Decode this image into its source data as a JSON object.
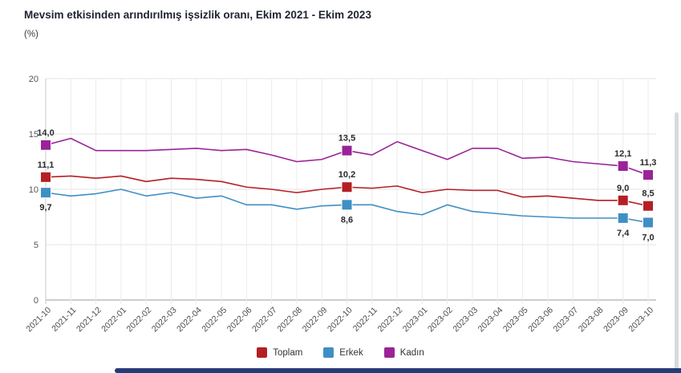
{
  "chart_data": {
    "type": "line",
    "title": "Mevsim etkisinden arındırılmış işsizlik oranı, Ekim 2021 - Ekim 2023",
    "unit": "(%)",
    "categories": [
      "2021-10",
      "2021-11",
      "2021-12",
      "2022-01",
      "2022-02",
      "2022-03",
      "2022-04",
      "2022-05",
      "2022-06",
      "2022-07",
      "2022-08",
      "2022-09",
      "2022-10",
      "2022-11",
      "2022-12",
      "2023-01",
      "2023-02",
      "2023-03",
      "2023-04",
      "2023-05",
      "2023-06",
      "2023-07",
      "2023-08",
      "2023-09",
      "2023-10"
    ],
    "series": [
      {
        "name": "Toplam",
        "color": "#b41f24",
        "values": [
          11.1,
          11.2,
          11.0,
          11.2,
          10.7,
          11.0,
          10.9,
          10.7,
          10.2,
          10.0,
          9.7,
          10.0,
          10.2,
          10.1,
          10.3,
          9.7,
          10.0,
          9.9,
          9.9,
          9.3,
          9.4,
          9.2,
          9.0,
          9.0,
          8.5
        ],
        "labeled_points": [
          {
            "category": "2021-10",
            "label": "11,1",
            "position": "above"
          },
          {
            "category": "2022-10",
            "label": "10,2",
            "position": "above"
          },
          {
            "category": "2023-09",
            "label": "9,0",
            "position": "above"
          },
          {
            "category": "2023-10",
            "label": "8,5",
            "position": "above"
          }
        ]
      },
      {
        "name": "Erkek",
        "color": "#3f8fc5",
        "values": [
          9.7,
          9.4,
          9.6,
          10.0,
          9.4,
          9.7,
          9.2,
          9.4,
          8.6,
          8.6,
          8.2,
          8.5,
          8.6,
          8.6,
          8.0,
          7.7,
          8.6,
          8.0,
          7.8,
          7.6,
          7.5,
          7.4,
          7.4,
          7.4,
          7.0
        ],
        "labeled_points": [
          {
            "category": "2021-10",
            "label": "9,7",
            "position": "below"
          },
          {
            "category": "2022-10",
            "label": "8,6",
            "position": "below"
          },
          {
            "category": "2023-09",
            "label": "7,4",
            "position": "below"
          },
          {
            "category": "2023-10",
            "label": "7,0",
            "position": "below"
          }
        ]
      },
      {
        "name": "Kadın",
        "color": "#9a2398",
        "values": [
          14.0,
          14.6,
          13.5,
          13.5,
          13.5,
          13.6,
          13.7,
          13.5,
          13.6,
          13.1,
          12.5,
          12.7,
          13.5,
          13.1,
          14.3,
          13.5,
          12.7,
          13.7,
          13.7,
          12.8,
          12.9,
          12.5,
          12.3,
          12.1,
          11.3
        ],
        "labeled_points": [
          {
            "category": "2021-10",
            "label": "14,0",
            "position": "above"
          },
          {
            "category": "2022-10",
            "label": "13,5",
            "position": "above"
          },
          {
            "category": "2023-09",
            "label": "12,1",
            "position": "above"
          },
          {
            "category": "2023-10",
            "label": "11,3",
            "position": "above"
          }
        ]
      }
    ],
    "y_axis": {
      "min": 0,
      "max": 20,
      "ticks": [
        0,
        5,
        10,
        15,
        20
      ]
    },
    "x_axis": {
      "label_rotation": -45
    },
    "grid": true,
    "legend_position": "bottom-center",
    "decimal_separator": ","
  }
}
